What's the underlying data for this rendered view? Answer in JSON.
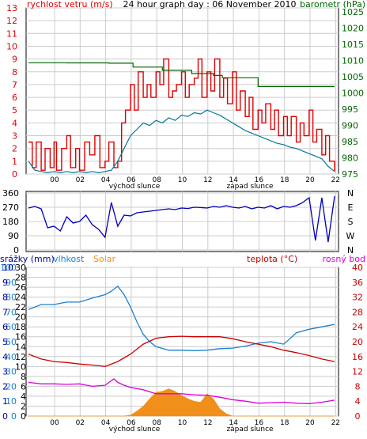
{
  "chart_data": [
    {
      "type": "line",
      "title": "24 hour graph day : 06 November 2010",
      "left_label": "rychlost vetru (m/s)",
      "right_label": "barometr (hPa)",
      "left_ticks": [
        "0",
        "1",
        "2",
        "3",
        "4",
        "5",
        "6",
        "7",
        "8",
        "9",
        "10",
        "11",
        "12",
        "13"
      ],
      "left_ylim": [
        0,
        13
      ],
      "right_ticks": [
        "975",
        "980",
        "985",
        "990",
        "995",
        "1000",
        "1005",
        "1010",
        "1015",
        "1020",
        "1025"
      ],
      "right_ylim": [
        975,
        1026.25
      ],
      "x_ticks": [
        "00",
        "02",
        "04",
        "06",
        "08",
        "10",
        "12",
        "14",
        "16",
        "18",
        "20",
        "22"
      ],
      "sunrise_label": "východ slunce",
      "sunset_label": "západ slunce",
      "colors": {
        "gust": "#e00000",
        "avg": "#007799",
        "baro": "#006600",
        "title": "#000000",
        "left": "#e00000",
        "right": "#006600"
      },
      "series": [
        {
          "name": "gust",
          "x": [
            0,
            0.3,
            0.6,
            1.0,
            1.3,
            1.7,
            2.0,
            2.2,
            2.6,
            3.0,
            3.3,
            3.7,
            4.0,
            4.4,
            4.8,
            5.2,
            5.6,
            6.0,
            6.3,
            6.7,
            7.0,
            7.3,
            7.6,
            8.0,
            8.3,
            8.6,
            9.0,
            9.3,
            9.6,
            10.0,
            10.3,
            10.6,
            11.0,
            11.3,
            11.6,
            12.0,
            12.3,
            12.6,
            13.0,
            13.3,
            13.6,
            14.0,
            14.3,
            14.6,
            15.0,
            15.3,
            15.6,
            16.0,
            16.3,
            16.6,
            17.0,
            17.3,
            17.6,
            18.0,
            18.3,
            18.6,
            19.0,
            19.3,
            19.6,
            20.0,
            20.3,
            20.6,
            21.0,
            21.3,
            21.6,
            22.0,
            22.3,
            22.6,
            23.0,
            23.3,
            23.6,
            24.0
          ],
          "values": [
            2.5,
            0.5,
            2.5,
            0.3,
            2,
            0.5,
            2.5,
            0.3,
            2,
            3,
            0.5,
            2,
            0.3,
            2.5,
            1.5,
            3,
            0.5,
            1,
            2.5,
            0.5,
            1,
            4,
            5,
            7,
            5,
            8,
            6,
            7,
            6,
            8,
            7,
            9,
            6,
            6.5,
            7,
            8,
            6,
            7,
            7.5,
            9,
            6,
            8,
            6.5,
            9,
            6,
            7.5,
            5.5,
            8,
            5,
            6.5,
            4.5,
            6,
            3.5,
            5,
            4,
            5.5,
            3.5,
            5,
            3,
            4.5,
            3,
            4.5,
            2.5,
            4,
            3,
            5,
            2.5,
            3.5,
            1.5,
            3,
            1,
            0.2
          ]
        },
        {
          "name": "avg",
          "x": [
            0,
            0.5,
            1.0,
            1.5,
            2.0,
            2.5,
            3.0,
            3.5,
            4.0,
            4.5,
            5.0,
            5.5,
            6.0,
            6.5,
            7.0,
            7.5,
            8.0,
            8.5,
            9.0,
            9.5,
            10.0,
            10.5,
            11.0,
            11.5,
            12.0,
            12.5,
            13.0,
            13.5,
            14.0,
            14.5,
            15.0,
            15.5,
            16.0,
            16.5,
            17.0,
            17.5,
            18.0,
            18.5,
            19.0,
            19.5,
            20.0,
            20.5,
            21.0,
            21.5,
            22.0,
            22.5,
            23.0,
            23.5,
            24.0
          ],
          "values": [
            1,
            0.3,
            0.2,
            0.1,
            0.2,
            0.1,
            0.2,
            0.1,
            0.2,
            0.1,
            0.2,
            0.1,
            0.2,
            0.3,
            1,
            2,
            3,
            3.5,
            4,
            3.8,
            4.2,
            4,
            4.4,
            4.2,
            4.6,
            4.5,
            4.8,
            4.7,
            5,
            4.8,
            4.6,
            4.3,
            4,
            3.7,
            3.4,
            3.2,
            3,
            2.8,
            2.6,
            2.4,
            2.3,
            2.1,
            2,
            1.8,
            1.6,
            1.4,
            1.2,
            0.6,
            0.2
          ]
        },
        {
          "name": "baro",
          "x": [
            0,
            3,
            6.3,
            8.2,
            10.5,
            12.8,
            14.5,
            15.2,
            18,
            20,
            22,
            24
          ],
          "values": [
            1009.3,
            1009.3,
            1009.2,
            1008,
            1007,
            1006,
            1005.4,
            1004.7,
            1002,
            1002,
            1002,
            1002
          ]
        }
      ]
    },
    {
      "type": "line",
      "title": "",
      "left_ticks": [
        "0",
        "90",
        "180",
        "270",
        "360"
      ],
      "left_ylim": [
        0,
        360
      ],
      "right_labels": [
        "N",
        "W",
        "S",
        "E",
        "N"
      ],
      "colors": {
        "dir": "#0000bb"
      },
      "series": [
        {
          "name": "direction",
          "x": [
            0,
            0.5,
            1.0,
            1.5,
            2.0,
            2.5,
            3.0,
            3.5,
            4.0,
            4.5,
            5.0,
            5.5,
            6.0,
            6.5,
            7.0,
            7.5,
            8.0,
            8.5,
            9.0,
            9.5,
            10.0,
            10.5,
            11.0,
            11.5,
            12.0,
            12.5,
            13.0,
            13.5,
            14.0,
            14.5,
            15.0,
            15.5,
            16.0,
            16.5,
            17.0,
            17.5,
            18.0,
            18.5,
            19.0,
            19.5,
            20.0,
            20.5,
            21.0,
            21.5,
            22.0,
            22.5,
            23.0,
            23.5,
            24.0
          ],
          "values": [
            265,
            275,
            260,
            140,
            150,
            120,
            210,
            170,
            180,
            220,
            160,
            130,
            80,
            300,
            150,
            220,
            215,
            235,
            240,
            245,
            250,
            255,
            260,
            255,
            265,
            262,
            270,
            268,
            265,
            275,
            270,
            280,
            270,
            265,
            275,
            260,
            270,
            265,
            280,
            260,
            275,
            270,
            280,
            300,
            330,
            60,
            330,
            50,
            340
          ]
        }
      ]
    },
    {
      "type": "area",
      "title": "",
      "labels": {
        "rain": "srážky (mm)",
        "humidity": "vlhkost",
        "solar": "Solar",
        "temp": "teplota (°C)",
        "dew": "rosný bod"
      },
      "rain_ticks": [
        "0",
        "1",
        "2",
        "3",
        "4",
        "5",
        "6",
        "7",
        "8",
        "9",
        "10"
      ],
      "rain_ylim": [
        0,
        10
      ],
      "left_ticks": [
        "0",
        "2",
        "4",
        "6",
        "8",
        "10",
        "12",
        "14",
        "16",
        "18",
        "20",
        "22",
        "24",
        "26",
        "28",
        "30"
      ],
      "left_ylim": [
        0,
        30
      ],
      "humidity_ticks": [
        "0",
        "10",
        "20",
        "30",
        "40",
        "50",
        "60",
        "70",
        "80",
        "90",
        "100"
      ],
      "humidity_ylim": [
        0,
        100
      ],
      "right_ticks": [
        "0",
        "4",
        "8",
        "12",
        "16",
        "20",
        "24",
        "28",
        "32",
        "36",
        "40"
      ],
      "right_ylim": [
        0,
        40
      ],
      "colors": {
        "humidity": "#1a7fd0",
        "temp": "#cc0000",
        "dew": "#dd00dd",
        "solar": "#f0901a",
        "rain": "#000099",
        "temp_axis": "#cc0000",
        "dew_axis": "#cc0000"
      },
      "series": [
        {
          "name": "humidity",
          "x": [
            0,
            1,
            2,
            3,
            4,
            5,
            6,
            6.5,
            7,
            7.5,
            8,
            8.5,
            9,
            9.5,
            10,
            11,
            12,
            13,
            14,
            15,
            16,
            17,
            18,
            19,
            20,
            20.5,
            21,
            22,
            23,
            24
          ],
          "values": [
            21.5,
            22.5,
            22.5,
            23,
            23,
            23.8,
            24.5,
            25.2,
            26.2,
            24.5,
            22,
            19,
            16.5,
            15,
            14,
            13.3,
            13.3,
            13.2,
            13.3,
            13.6,
            13.7,
            14.1,
            14.7,
            15,
            14.5,
            15.6,
            16.8,
            17.5,
            18,
            18.5
          ]
        },
        {
          "name": "temperature",
          "x": [
            0,
            1,
            2,
            3,
            4,
            5,
            6,
            7,
            8,
            9,
            10,
            11,
            12,
            13,
            14,
            15,
            16,
            17,
            18,
            19,
            20,
            21,
            22,
            23,
            24
          ],
          "values": [
            12.5,
            11.5,
            11,
            10.8,
            10.5,
            10.3,
            10,
            11,
            12.5,
            14.5,
            15.7,
            16,
            16.1,
            16,
            16,
            16,
            15.6,
            15,
            14.5,
            14,
            13.3,
            12.8,
            12.2,
            11.5,
            11
          ]
        },
        {
          "name": "dew point",
          "x": [
            0,
            1,
            2,
            3,
            4,
            5,
            6,
            6.7,
            7,
            7.5,
            8,
            9,
            10,
            11,
            12,
            13,
            14,
            15,
            16,
            17,
            18,
            19,
            20,
            21,
            22,
            23,
            24
          ],
          "values": [
            6.8,
            6.5,
            6.5,
            6.4,
            6.5,
            6,
            6.2,
            7.5,
            6.8,
            6.2,
            5.8,
            5.3,
            4.5,
            4.5,
            4.5,
            4.3,
            4.2,
            3.8,
            3.3,
            3,
            2.6,
            2.7,
            2.8,
            2.6,
            2.5,
            2.8,
            3.2
          ]
        },
        {
          "name": "solar",
          "x": [
            0,
            7.5,
            8,
            8.5,
            9,
            9.5,
            10,
            10.5,
            11,
            11.5,
            12,
            12.5,
            13,
            13.5,
            14,
            14.5,
            15,
            15.5,
            16,
            24
          ],
          "values": [
            0,
            0,
            0.2,
            1,
            2,
            3.5,
            4.8,
            5,
            5.5,
            5,
            4.2,
            3.5,
            3,
            2.8,
            4.5,
            3.5,
            1.5,
            0.5,
            0,
            0
          ]
        },
        {
          "name": "rain",
          "x": [
            0,
            24
          ],
          "values": [
            0.5,
            0.5
          ]
        }
      ]
    }
  ]
}
